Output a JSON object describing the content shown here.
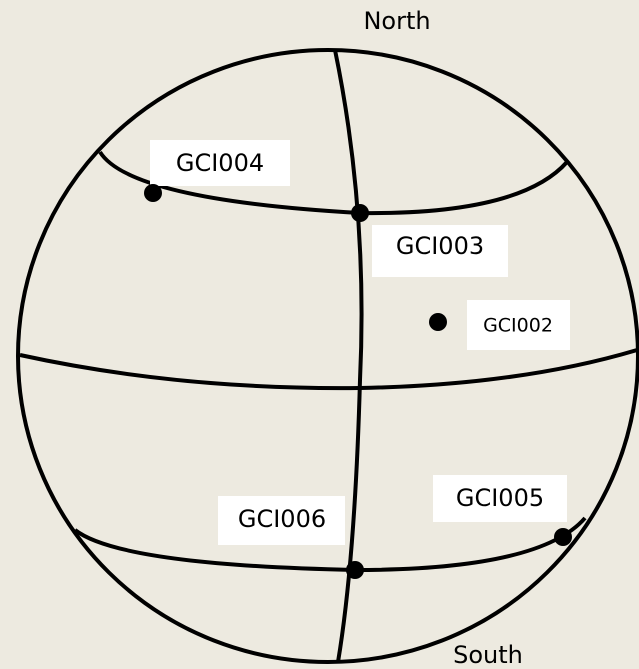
{
  "poles": {
    "north": "North",
    "south": "South"
  },
  "points": [
    {
      "label": "GCI004"
    },
    {
      "label": "GCI003"
    },
    {
      "label": "GCI002"
    },
    {
      "label": "GCI005"
    },
    {
      "label": "GCI006"
    }
  ]
}
